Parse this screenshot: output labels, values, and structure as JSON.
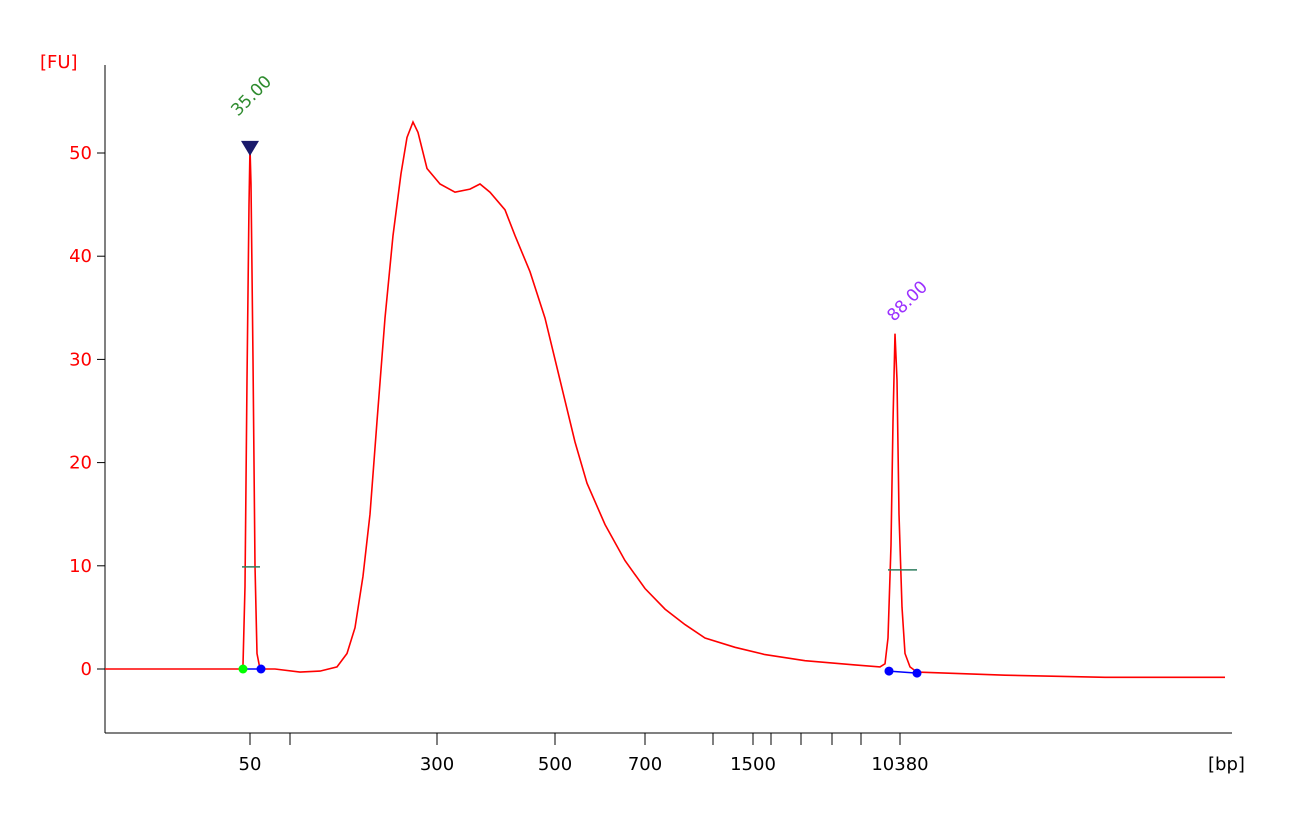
{
  "chart_data": {
    "type": "line",
    "y_unit_label": "[FU]",
    "x_unit_label": "[bp]",
    "ylim": [
      -6,
      59
    ],
    "y_ticks": [
      0,
      10,
      20,
      30,
      40,
      50
    ],
    "x_ticks_labeled": [
      "50",
      "300",
      "500",
      "700",
      "1500",
      "10380"
    ],
    "grid": false,
    "colors": {
      "trace": "#ff0000",
      "y_axis_text": "#ff0000",
      "lower_marker": "#2e8b2e",
      "upper_marker": "#9b30ff",
      "marker_triangle": "#1a1a6b",
      "peak_point": "#0000ff",
      "start_point": "#00ff00",
      "halfwidth_line": "#2e7d5e"
    },
    "annotations": [
      {
        "text": "35.00",
        "peak_height": 50.5,
        "role": "lower marker"
      },
      {
        "text": "88.00",
        "peak_height": 32.5,
        "role": "upper marker"
      }
    ],
    "series": [
      {
        "points": [
          [
            0,
            0
          ],
          [
            135,
            0.0
          ],
          [
            138,
            0.4
          ],
          [
            140,
            8.0
          ],
          [
            142,
            28
          ],
          [
            144,
            45
          ],
          [
            145,
            50.5
          ],
          [
            146,
            47
          ],
          [
            148,
            30
          ],
          [
            150,
            10
          ],
          [
            152,
            1.5
          ],
          [
            155,
            0
          ],
          [
            170,
            0
          ],
          [
            195,
            -0.3
          ],
          [
            215,
            -0.2
          ],
          [
            232,
            0.2
          ],
          [
            242,
            1.5
          ],
          [
            250,
            4
          ],
          [
            258,
            9
          ],
          [
            265,
            15
          ],
          [
            272,
            24
          ],
          [
            280,
            34
          ],
          [
            288,
            42
          ],
          [
            296,
            48
          ],
          [
            302,
            51.5
          ],
          [
            308,
            53
          ],
          [
            313,
            52
          ],
          [
            322,
            48.5
          ],
          [
            335,
            47
          ],
          [
            350,
            46.2
          ],
          [
            365,
            46.5
          ],
          [
            375,
            47
          ],
          [
            385,
            46.2
          ],
          [
            400,
            44.5
          ],
          [
            410,
            42
          ],
          [
            425,
            38.5
          ],
          [
            440,
            34
          ],
          [
            455,
            28
          ],
          [
            470,
            22
          ],
          [
            482,
            18
          ],
          [
            500,
            14
          ],
          [
            520,
            10.5
          ],
          [
            540,
            7.8
          ],
          [
            560,
            5.8
          ],
          [
            580,
            4.3
          ],
          [
            600,
            3
          ],
          [
            630,
            2.1
          ],
          [
            660,
            1.4
          ],
          [
            700,
            0.8
          ],
          [
            750,
            0.4
          ],
          [
            775,
            0.2
          ],
          [
            780,
            0.5
          ],
          [
            783,
            3
          ],
          [
            786,
            12
          ],
          [
            788,
            24
          ],
          [
            790,
            32.5
          ],
          [
            792,
            28
          ],
          [
            794,
            15
          ],
          [
            797,
            6
          ],
          [
            800,
            1.5
          ],
          [
            805,
            0.2
          ],
          [
            812,
            -0.3
          ],
          [
            900,
            -0.6
          ],
          [
            1000,
            -0.8
          ],
          [
            1120,
            -0.8
          ]
        ]
      }
    ]
  }
}
